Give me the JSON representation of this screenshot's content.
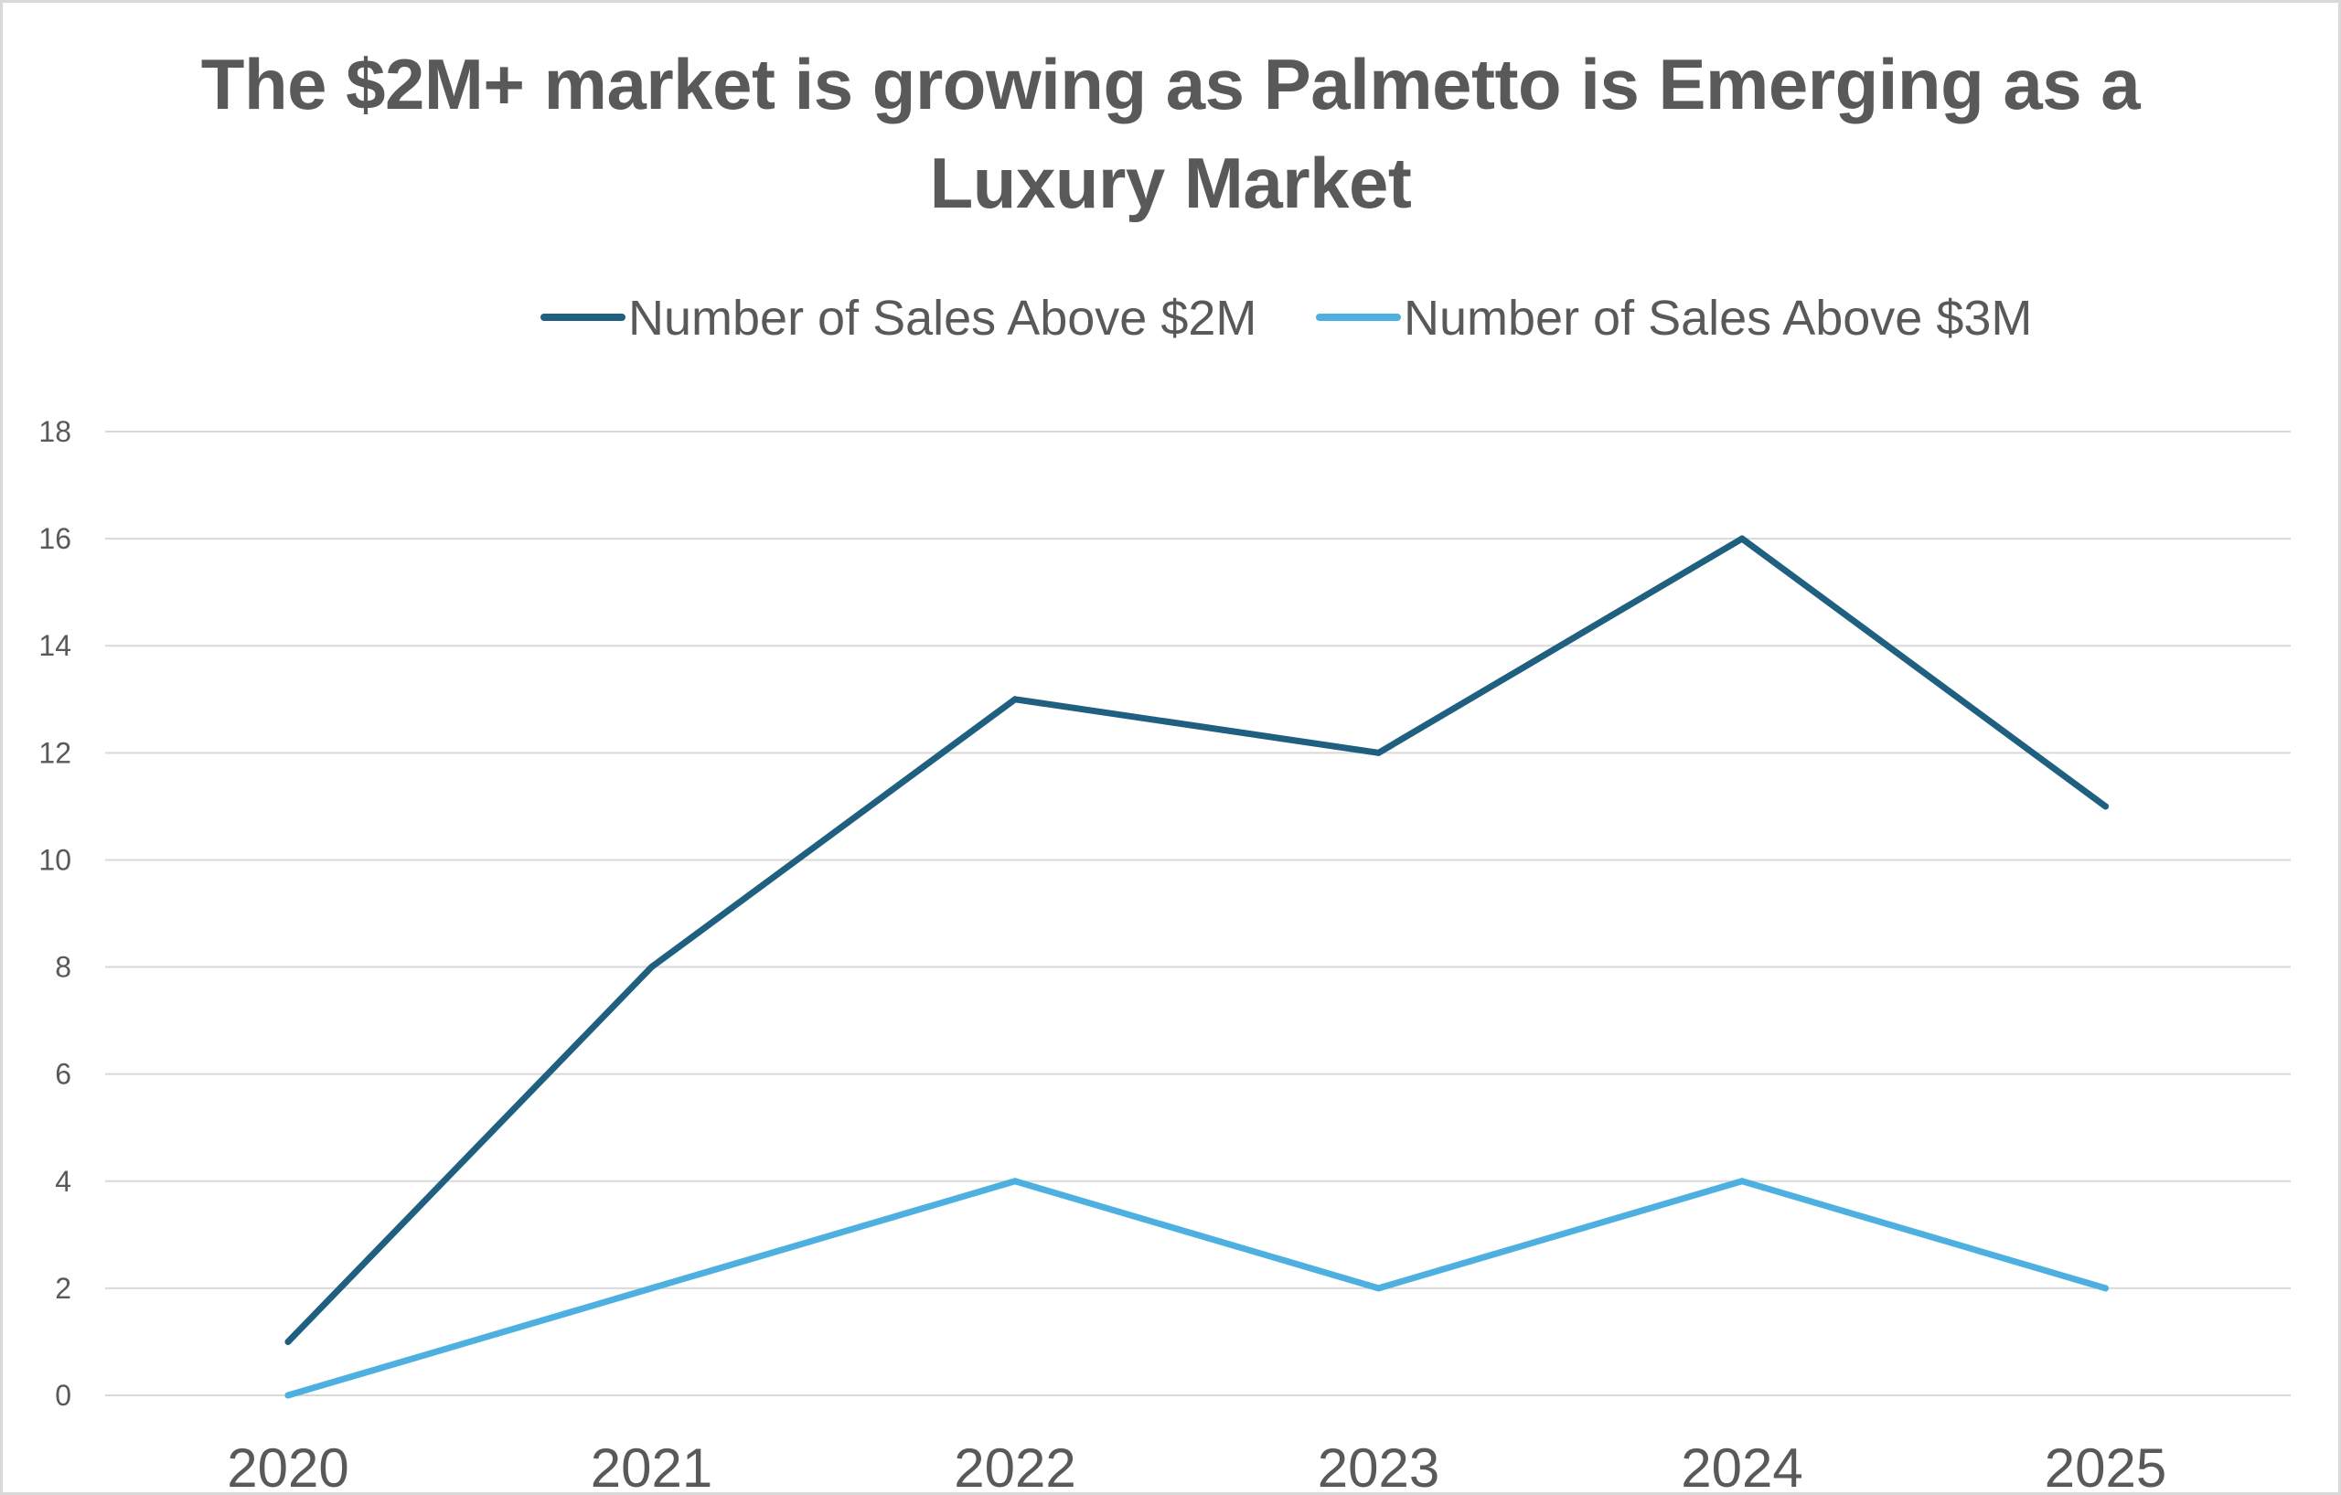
{
  "chart_data": {
    "type": "line",
    "title_lines": [
      "The $2M+ market is growing as Palmetto is Emerging as a",
      "Luxury Market"
    ],
    "categories": [
      "2020",
      "2021",
      "2022",
      "2023",
      "2024",
      "2025"
    ],
    "series": [
      {
        "name": "Number of Sales Above $2M",
        "values": [
          1,
          8,
          13,
          12,
          16,
          11
        ],
        "color": "#1f5f80"
      },
      {
        "name": "Number of Sales Above $3M",
        "values": [
          0,
          2,
          4,
          2,
          4,
          2
        ],
        "color": "#4db0e0"
      }
    ],
    "ylim": [
      0,
      18
    ],
    "yticks": [
      0,
      2,
      4,
      6,
      8,
      10,
      12,
      14,
      16,
      18
    ],
    "grid": true,
    "gridColor": "#d9d9d9",
    "legend_position": "top"
  }
}
